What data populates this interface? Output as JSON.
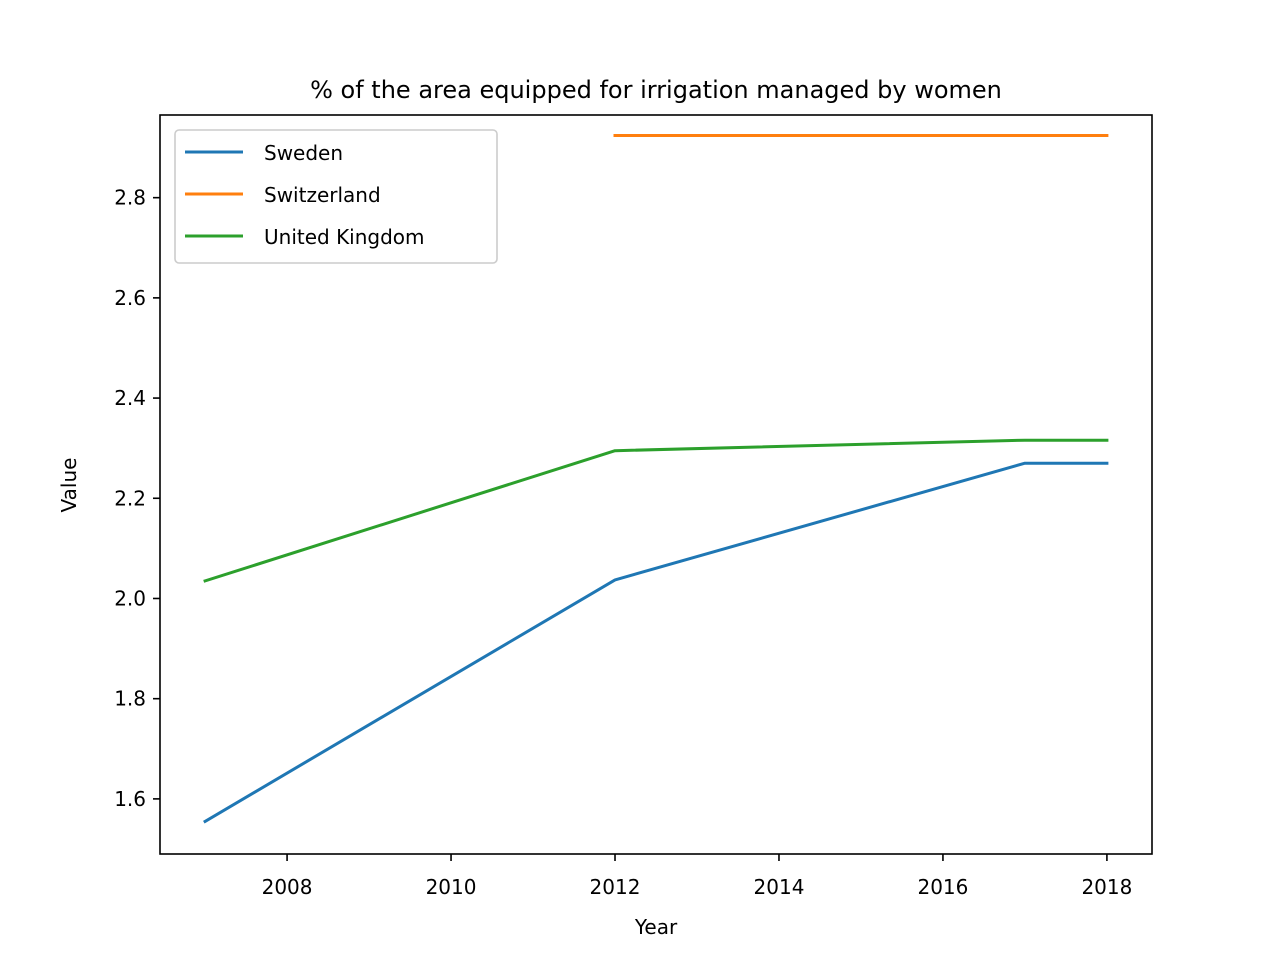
{
  "chart_data": {
    "type": "line",
    "title": "% of the area equipped for irrigation managed by women",
    "xlabel": "Year",
    "ylabel": "Value",
    "xlim": [
      2006.45,
      2018.55
    ],
    "ylim": [
      1.49,
      2.965
    ],
    "xticks": [
      2008,
      2010,
      2012,
      2014,
      2016,
      2018
    ],
    "yticks": [
      1.6,
      1.8,
      2.0,
      2.2,
      2.4,
      2.6,
      2.8
    ],
    "xtick_labels": [
      "2008",
      "2010",
      "2012",
      "2014",
      "2016",
      "2018"
    ],
    "ytick_labels": [
      "1.6",
      "1.8",
      "2.0",
      "2.2",
      "2.4",
      "2.6",
      "2.8"
    ],
    "grid": false,
    "legend_position": "upper-left",
    "series": [
      {
        "name": "Sweden",
        "color": "#1f77b4",
        "x": [
          2007,
          2012,
          2017,
          2018
        ],
        "y": [
          1.555,
          2.037,
          2.27,
          2.27
        ]
      },
      {
        "name": "Switzerland",
        "color": "#ff7f0e",
        "x": [
          2012,
          2017,
          2018
        ],
        "y": [
          2.924,
          2.924,
          2.924
        ]
      },
      {
        "name": "United Kingdom",
        "color": "#2ca02c",
        "x": [
          2007,
          2012,
          2017,
          2018
        ],
        "y": [
          2.035,
          2.295,
          2.316,
          2.316
        ]
      }
    ]
  }
}
